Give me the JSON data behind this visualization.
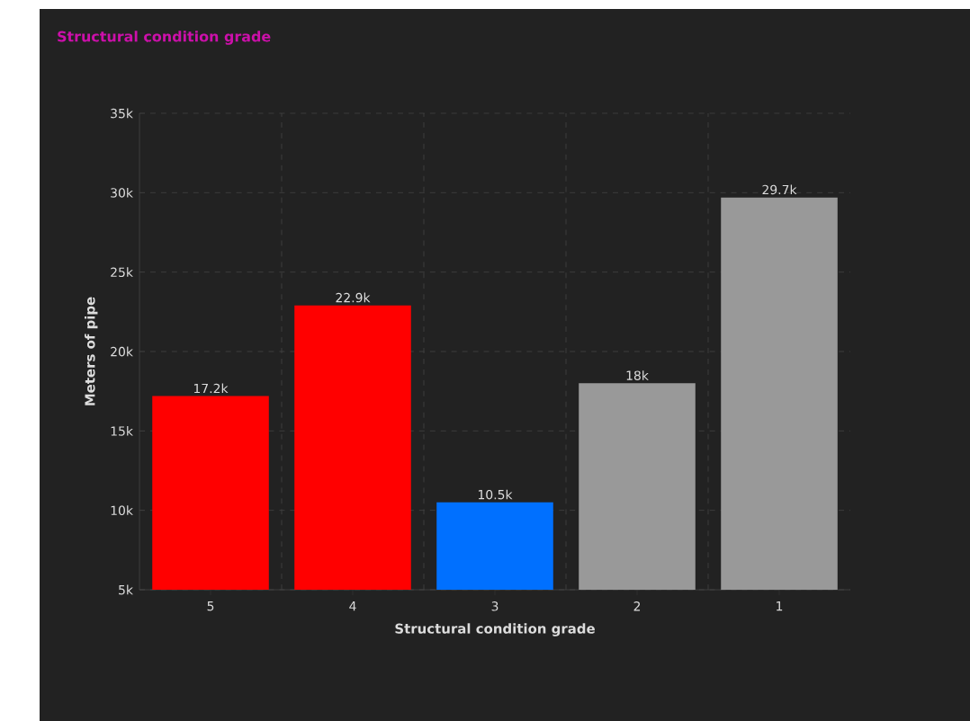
{
  "chart_data": {
    "type": "bar",
    "title": "Structural condition grade",
    "xlabel": "Structural condition grade",
    "ylabel": "Meters of pipe",
    "categories": [
      "5",
      "4",
      "3",
      "2",
      "1"
    ],
    "values": [
      17200,
      22900,
      10500,
      18000,
      29700
    ],
    "value_labels": [
      "17.2k",
      "22.9k",
      "10.5k",
      "18k",
      "29.7k"
    ],
    "colors": [
      "#ff0000",
      "#ff0000",
      "#0070ff",
      "#999999",
      "#999999"
    ],
    "ylim": [
      5000,
      35000
    ],
    "yticks": [
      {
        "value": 5000,
        "label": "5k"
      },
      {
        "value": 10000,
        "label": "10k"
      },
      {
        "value": 15000,
        "label": "15k"
      },
      {
        "value": 20000,
        "label": "20k"
      },
      {
        "value": 25000,
        "label": "25k"
      },
      {
        "value": 30000,
        "label": "30k"
      },
      {
        "value": 35000,
        "label": "35k"
      }
    ],
    "grid": true
  }
}
